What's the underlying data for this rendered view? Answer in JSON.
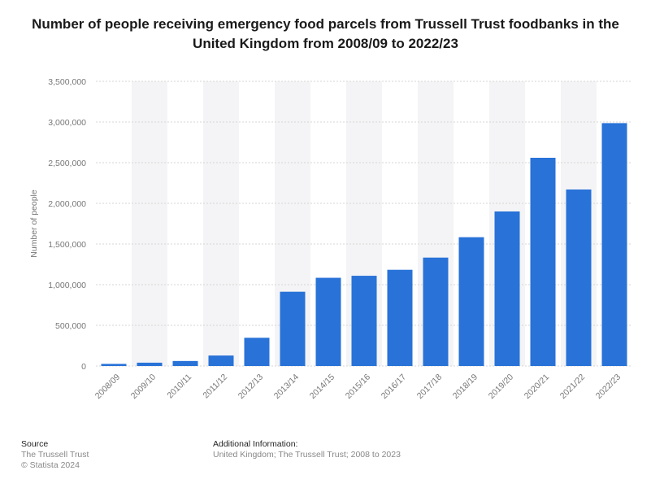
{
  "title": "Number of people receiving emergency food parcels from Trussell Trust foodbanks in the United Kingdom from 2008/09 to 2022/23",
  "footer": {
    "source_heading": "Source",
    "source_name": "The Trussell Trust",
    "copyright": "© Statista 2024",
    "info_heading": "Additional Information:",
    "info_text": "United Kingdom; The Trussell Trust; 2008 to 2023"
  },
  "colors": {
    "bar": "#2872d8",
    "band": "#f4f4f6",
    "grid": "#d6d6d6"
  },
  "chart_data": {
    "type": "bar",
    "title": "Number of people receiving emergency food parcels from Trussell Trust foodbanks in the United Kingdom from 2008/09 to 2022/23",
    "xlabel": "",
    "ylabel": "Number of people",
    "ylim": [
      0,
      3500000
    ],
    "yticks": [
      0,
      500000,
      1000000,
      1500000,
      2000000,
      2500000,
      3000000,
      3500000
    ],
    "ytick_labels": [
      "0",
      "500,000",
      "1,000,000",
      "1,500,000",
      "2,000,000",
      "2,500,000",
      "3,000,000",
      "3,500,000"
    ],
    "grid": true,
    "legend": "none",
    "categories": [
      "2008/09",
      "2009/10",
      "2010/11",
      "2011/12",
      "2012/13",
      "2013/14",
      "2014/15",
      "2015/16",
      "2016/17",
      "2017/18",
      "2018/19",
      "2019/20",
      "2020/21",
      "2021/22",
      "2022/23"
    ],
    "values": [
      25899,
      40898,
      61468,
      128697,
      346992,
      913138,
      1084604,
      1109309,
      1182954,
      1332952,
      1583668,
      1900122,
      2560000,
      2170000,
      2986203
    ]
  }
}
